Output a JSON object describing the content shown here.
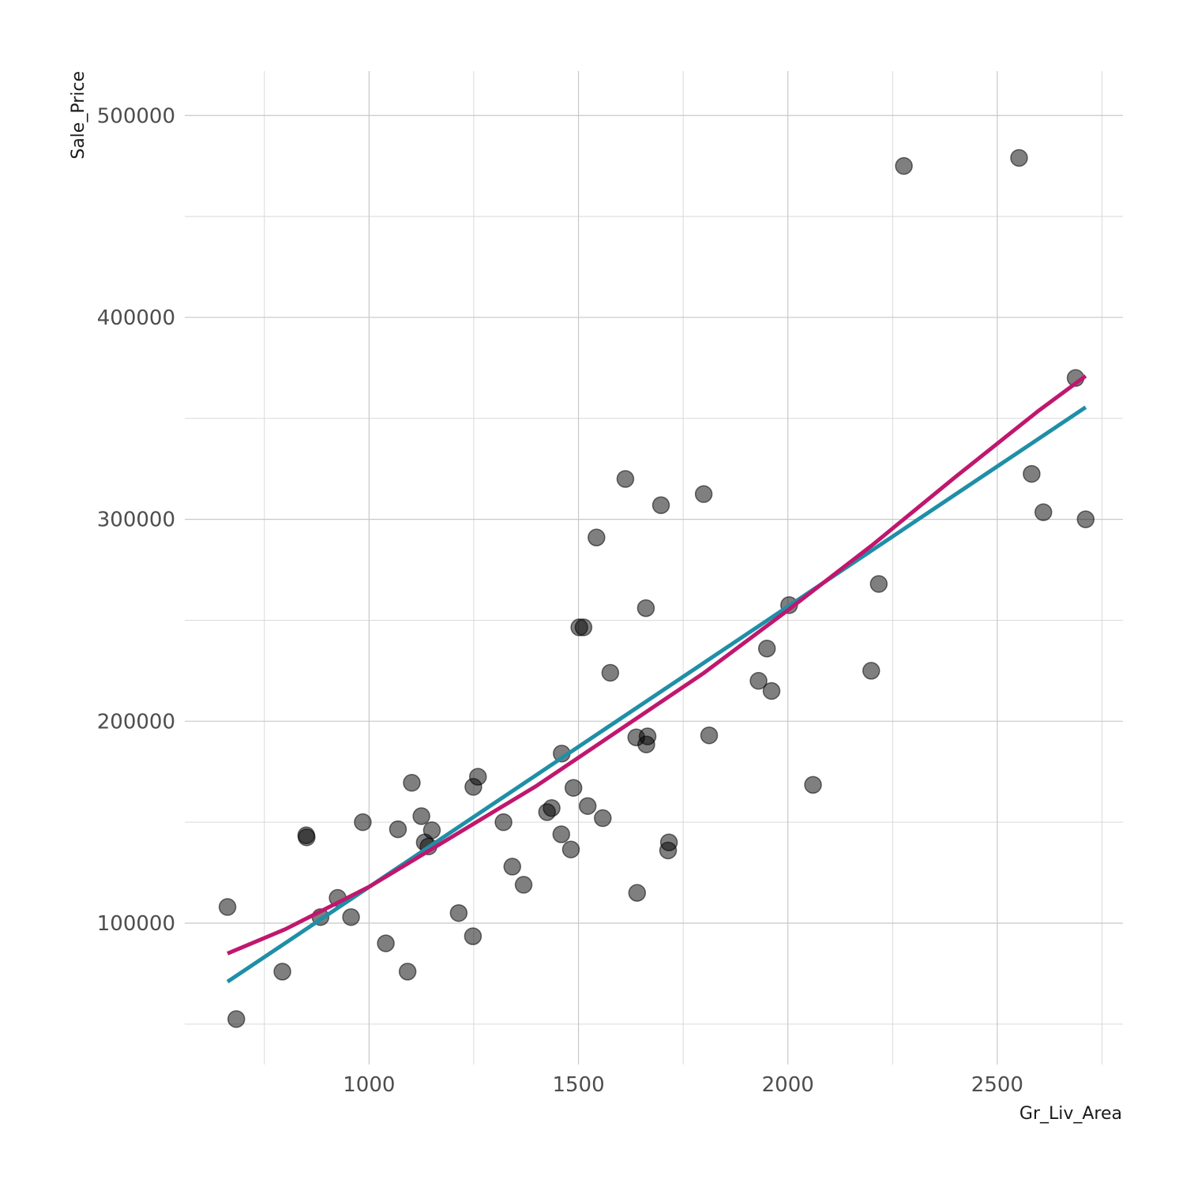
{
  "chart_data": {
    "type": "scatter",
    "title": "",
    "xlabel": "Gr_Liv_Area",
    "ylabel": "Sale_Price",
    "xlim": [
      560,
      2800
    ],
    "ylim": [
      30000,
      522000
    ],
    "x_ticks": [
      1000,
      1500,
      2000,
      2500
    ],
    "x_tick_labels": [
      "1000",
      "1500",
      "2000",
      "2500"
    ],
    "x_minor_ticks": [
      750,
      1250,
      1750,
      2250,
      2750
    ],
    "y_ticks": [
      100000,
      200000,
      300000,
      400000,
      500000
    ],
    "y_tick_labels": [
      "100000",
      "200000",
      "300000",
      "400000",
      "500000"
    ],
    "y_minor_ticks": [
      50000,
      150000,
      250000,
      350000,
      450000
    ],
    "grid": true,
    "legend": "none",
    "colors": {
      "points": "#000000",
      "linear_fit": "#1f8fa7",
      "curved_fit": "#c0176e"
    },
    "points": [
      {
        "x": 662,
        "y": 108000
      },
      {
        "x": 683,
        "y": 52500
      },
      {
        "x": 793,
        "y": 76000
      },
      {
        "x": 850,
        "y": 143500
      },
      {
        "x": 851,
        "y": 142500
      },
      {
        "x": 884,
        "y": 103000
      },
      {
        "x": 925,
        "y": 112500
      },
      {
        "x": 957,
        "y": 103000
      },
      {
        "x": 985,
        "y": 150000
      },
      {
        "x": 1040,
        "y": 90000
      },
      {
        "x": 1069,
        "y": 146500
      },
      {
        "x": 1092,
        "y": 76000
      },
      {
        "x": 1102,
        "y": 169500
      },
      {
        "x": 1125,
        "y": 153000
      },
      {
        "x": 1133,
        "y": 140000
      },
      {
        "x": 1142,
        "y": 138000
      },
      {
        "x": 1150,
        "y": 146000
      },
      {
        "x": 1214,
        "y": 105000
      },
      {
        "x": 1248,
        "y": 93500
      },
      {
        "x": 1249,
        "y": 167500
      },
      {
        "x": 1260,
        "y": 172500
      },
      {
        "x": 1321,
        "y": 150000
      },
      {
        "x": 1342,
        "y": 128000
      },
      {
        "x": 1369,
        "y": 119000
      },
      {
        "x": 1425,
        "y": 155000
      },
      {
        "x": 1436,
        "y": 157000
      },
      {
        "x": 1459,
        "y": 144000
      },
      {
        "x": 1460,
        "y": 184000
      },
      {
        "x": 1482,
        "y": 136500
      },
      {
        "x": 1488,
        "y": 167000
      },
      {
        "x": 1502,
        "y": 246500
      },
      {
        "x": 1512,
        "y": 246500
      },
      {
        "x": 1522,
        "y": 158000
      },
      {
        "x": 1543,
        "y": 291000
      },
      {
        "x": 1558,
        "y": 152000
      },
      {
        "x": 1576,
        "y": 224000
      },
      {
        "x": 1612,
        "y": 320000
      },
      {
        "x": 1638,
        "y": 192000
      },
      {
        "x": 1640,
        "y": 115000
      },
      {
        "x": 1661,
        "y": 256000
      },
      {
        "x": 1662,
        "y": 188500
      },
      {
        "x": 1665,
        "y": 192500
      },
      {
        "x": 1697,
        "y": 307000
      },
      {
        "x": 1714,
        "y": 136000
      },
      {
        "x": 1716,
        "y": 140000
      },
      {
        "x": 1799,
        "y": 312500
      },
      {
        "x": 1812,
        "y": 193000
      },
      {
        "x": 1930,
        "y": 220000
      },
      {
        "x": 1950,
        "y": 236000
      },
      {
        "x": 1961,
        "y": 215000
      },
      {
        "x": 2003,
        "y": 257500
      },
      {
        "x": 2060,
        "y": 168500
      },
      {
        "x": 2199,
        "y": 225000
      },
      {
        "x": 2217,
        "y": 268000
      },
      {
        "x": 2277,
        "y": 475000
      },
      {
        "x": 2552,
        "y": 479000
      },
      {
        "x": 2582,
        "y": 322500
      },
      {
        "x": 2610,
        "y": 303500
      },
      {
        "x": 2687,
        "y": 370000
      },
      {
        "x": 2711,
        "y": 300000
      }
    ],
    "linear_fit": [
      {
        "x": 662,
        "y": 71000
      },
      {
        "x": 2711,
        "y": 355500
      }
    ],
    "curved_fit": [
      {
        "x": 662,
        "y": 85000
      },
      {
        "x": 800,
        "y": 97000
      },
      {
        "x": 1000,
        "y": 118000
      },
      {
        "x": 1200,
        "y": 143000
      },
      {
        "x": 1400,
        "y": 168000
      },
      {
        "x": 1600,
        "y": 196000
      },
      {
        "x": 1800,
        "y": 224000
      },
      {
        "x": 2000,
        "y": 255000
      },
      {
        "x": 2200,
        "y": 287000
      },
      {
        "x": 2400,
        "y": 321000
      },
      {
        "x": 2600,
        "y": 354000
      },
      {
        "x": 2711,
        "y": 371000
      }
    ]
  }
}
